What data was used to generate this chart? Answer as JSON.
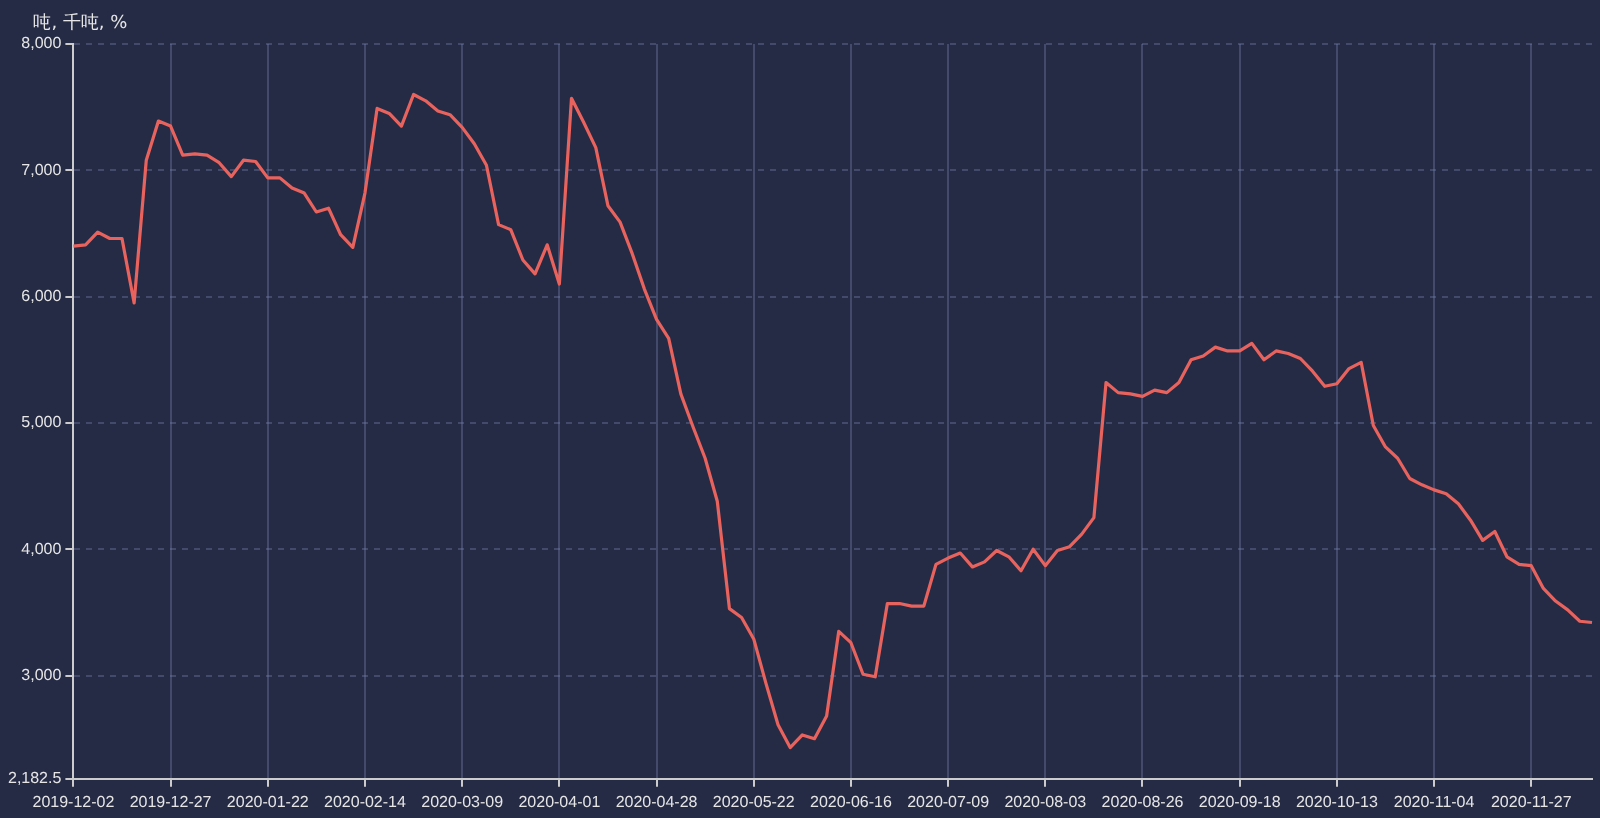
{
  "chart_data": {
    "type": "line",
    "ylabel": "吨, 千吨, %",
    "categories": [
      "2019-12-02",
      null,
      null,
      null,
      null,
      null,
      null,
      null,
      "2019-12-27",
      null,
      null,
      null,
      null,
      null,
      null,
      null,
      "2020-01-22",
      null,
      null,
      null,
      null,
      null,
      null,
      null,
      "2020-02-14",
      null,
      null,
      null,
      null,
      null,
      null,
      null,
      "2020-03-09",
      null,
      null,
      null,
      null,
      null,
      null,
      null,
      "2020-04-01",
      null,
      null,
      null,
      null,
      null,
      null,
      null,
      "2020-04-28",
      null,
      null,
      null,
      null,
      null,
      null,
      null,
      "2020-05-22",
      null,
      null,
      null,
      null,
      null,
      null,
      null,
      "2020-06-16",
      null,
      null,
      null,
      null,
      null,
      null,
      null,
      "2020-07-09",
      null,
      null,
      null,
      null,
      null,
      null,
      null,
      "2020-08-03",
      null,
      null,
      null,
      null,
      null,
      null,
      null,
      "2020-08-26",
      null,
      null,
      null,
      null,
      null,
      null,
      null,
      "2020-09-18",
      null,
      null,
      null,
      null,
      null,
      null,
      null,
      "2020-10-13",
      null,
      null,
      null,
      null,
      null,
      null,
      null,
      "2020-11-04",
      null,
      null,
      null,
      null,
      null,
      null,
      null,
      "2020-11-27",
      null,
      null,
      null,
      null,
      null
    ],
    "series": [
      {
        "color": "#e8635e",
        "values": [
          6400,
          6410,
          6510,
          6460,
          6460,
          5950,
          7080,
          7390,
          7350,
          7120,
          7130,
          7120,
          7060,
          6950,
          7080,
          7070,
          6940,
          6940,
          6860,
          6820,
          6670,
          6700,
          6490,
          6390,
          6820,
          7490,
          7450,
          7350,
          7600,
          7550,
          7470,
          7440,
          7340,
          7210,
          7040,
          6570,
          6530,
          6290,
          6180,
          6410,
          6100,
          7570,
          7380,
          7180,
          6720,
          6590,
          6340,
          6060,
          5820,
          5670,
          5230,
          4970,
          4720,
          4380,
          3530,
          3460,
          3290,
          2940,
          2610,
          2430,
          2530,
          2500,
          2680,
          3350,
          3260,
          3010,
          2990,
          3570,
          3570,
          3550,
          3550,
          3880,
          3930,
          3970,
          3860,
          3900,
          3990,
          3940,
          3830,
          4000,
          3870,
          3990,
          4020,
          4120,
          4250,
          5320,
          5240,
          5230,
          5210,
          5260,
          5240,
          5320,
          5500,
          5530,
          5600,
          5570,
          5570,
          5630,
          5500,
          5570,
          5550,
          5510,
          5410,
          5290,
          5310,
          5430,
          5480,
          4980,
          4810,
          4720,
          4560,
          4510,
          4470,
          4440,
          4360,
          4230,
          4070,
          4140,
          3940,
          3880,
          3870,
          3690,
          3590,
          3520,
          3430,
          3420
        ]
      }
    ],
    "ylim": [
      2182.5,
      8000
    ],
    "yticks": [
      {
        "value": 2182.5,
        "label": "2,182.5"
      },
      {
        "value": 3000,
        "label": "3,000"
      },
      {
        "value": 4000,
        "label": "4,000"
      },
      {
        "value": 5000,
        "label": "5,000"
      },
      {
        "value": 6000,
        "label": "6,000"
      },
      {
        "value": 7000,
        "label": "7,000"
      },
      {
        "value": 8000,
        "label": "8,000"
      }
    ],
    "grid": true,
    "legend": false,
    "marker": "none",
    "line_style": "solid"
  }
}
